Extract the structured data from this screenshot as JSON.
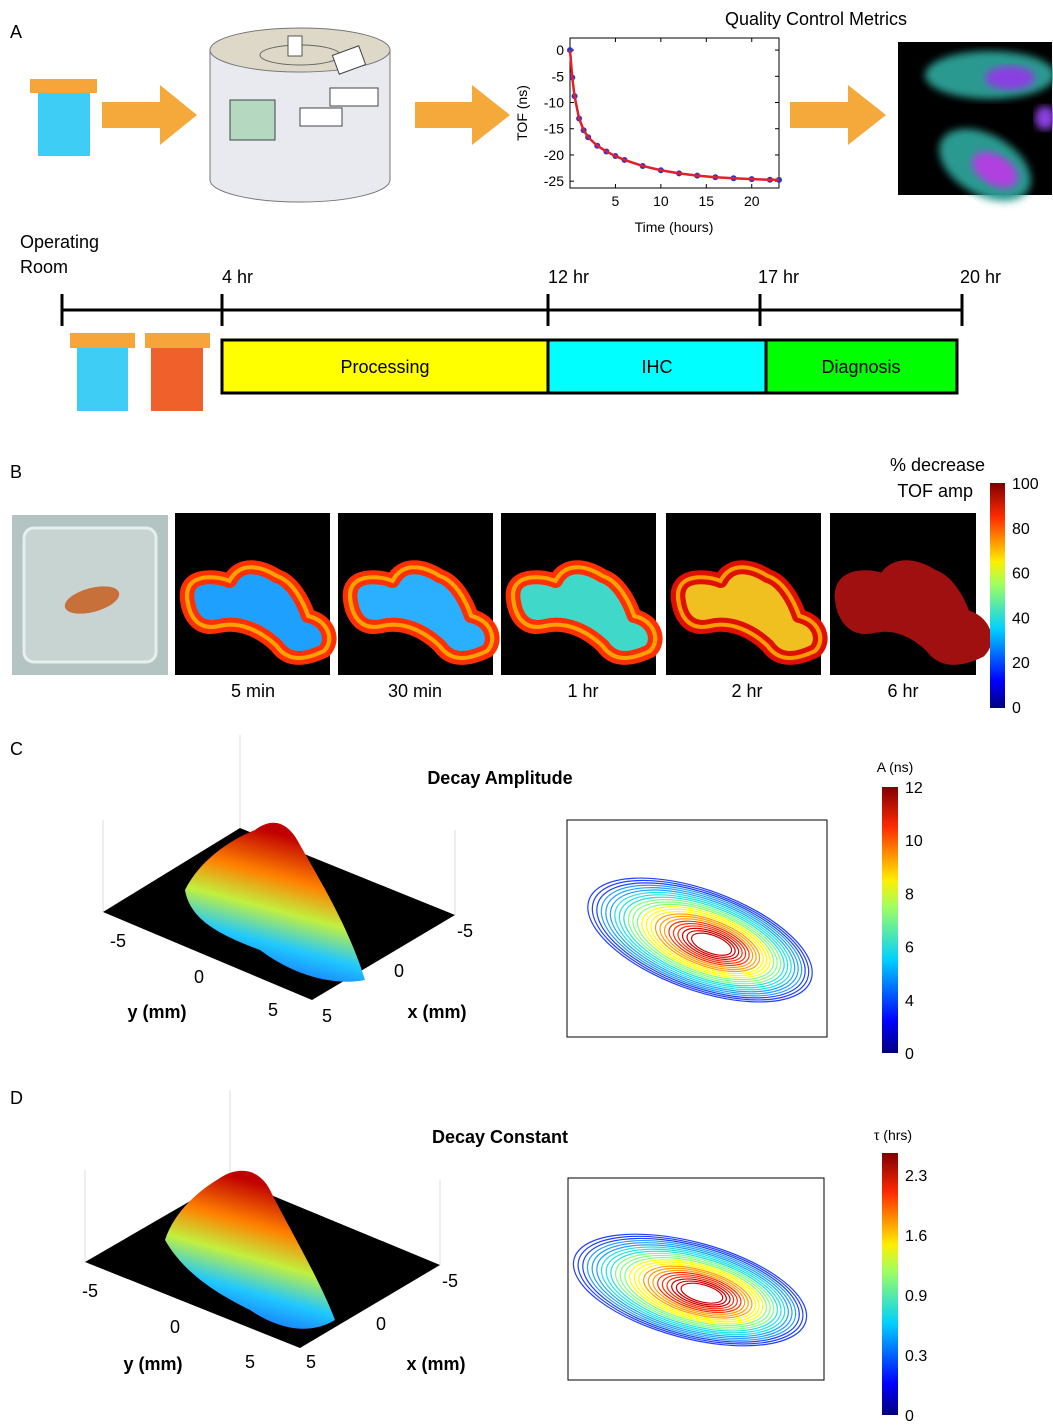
{
  "panels": {
    "a": {
      "label": "A",
      "qc_title": "Quality Control Metrics",
      "tof_chart": {
        "type": "line",
        "xlabel": "Time (hours)",
        "ylabel": "TOF (ns)",
        "x": [
          0,
          0.25,
          0.5,
          1,
          1.5,
          2,
          3,
          4,
          5,
          6,
          8,
          10,
          12,
          14,
          16,
          18,
          20,
          22,
          23
        ],
        "series": [
          {
            "color": "#2a35d8",
            "values": [
              0,
              -5.22,
              -8.79,
              -13.05,
              -15.28,
              -16.62,
              -18.24,
              -19.33,
              -20.21,
              -20.95,
              -22.1,
              -22.92,
              -23.51,
              -23.93,
              -24.24,
              -24.45,
              -24.6,
              -24.72,
              -24.76
            ]
          },
          {
            "color": "#e0202a",
            "values": [
              0,
              -5.22,
              -8.79,
              -13.05,
              -15.28,
              -16.62,
              -18.24,
              -19.33,
              -20.21,
              -20.95,
              -22.1,
              -22.92,
              -23.51,
              -23.93,
              -24.24,
              -24.45,
              -24.6,
              -24.72,
              -24.76
            ]
          }
        ],
        "xlim": [
          0,
          23
        ],
        "ylim": [
          -26.3,
          2.3
        ],
        "xticks": [
          5,
          10,
          15,
          20
        ],
        "yticks": [
          0,
          -5,
          -10,
          -15,
          -20,
          -25
        ]
      },
      "timeline": {
        "start_label": [
          "Operating",
          "Room"
        ],
        "ticks": [
          "4 hr",
          "12 hr",
          "17 hr",
          "20 hr"
        ],
        "stages": [
          "Processing",
          "IHC",
          "Diagnosis"
        ]
      }
    },
    "b": {
      "label": "B",
      "times": [
        "5 min",
        "30 min",
        "1 hr",
        "2 hr",
        "6 hr"
      ],
      "colorbar": {
        "title": [
          "% decrease",
          "TOF amp"
        ],
        "labels": [
          "100",
          "80",
          "60",
          "40",
          "20",
          "0"
        ]
      }
    },
    "c": {
      "label": "C",
      "title": "Decay Amplitude",
      "y_axis": "y (mm)",
      "x_axis": "x (mm)",
      "y_ticks": [
        "-5",
        "0",
        "5"
      ],
      "x_ticks": [
        "-5",
        "0",
        "5"
      ],
      "colorbar": {
        "title": "A (ns)",
        "labels": [
          "12",
          "10",
          "8",
          "6",
          "4",
          "0"
        ]
      }
    },
    "d": {
      "label": "D",
      "title": "Decay Constant",
      "y_axis": "y (mm)",
      "x_axis": "x (mm)",
      "y_ticks": [
        "-5",
        "0",
        "5"
      ],
      "x_ticks": [
        "-5",
        "0",
        "5"
      ],
      "colorbar": {
        "title": "τ (hrs)",
        "labels": [
          "2.3",
          "1.6",
          "0.9",
          "0.3",
          "0"
        ]
      }
    }
  }
}
